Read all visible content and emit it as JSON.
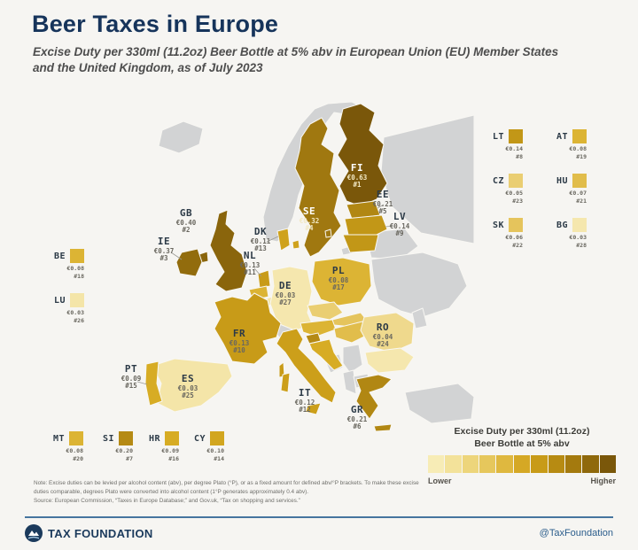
{
  "header": {
    "title": "Beer Taxes in Europe",
    "subtitle": "Excise Duty per 330ml (11.2oz) Beer Bottle at 5% abv in European Union (EU) Member States and the United Kingdom, as of July 2023"
  },
  "chart_data": {
    "type": "heatmap",
    "title": "Beer Taxes in Europe",
    "unit": "EUR per 330ml beer bottle at 5% abv",
    "categories": [
      "FI",
      "GB",
      "IE",
      "SE",
      "EE",
      "GR",
      "SI",
      "LT",
      "LV",
      "FR",
      "NL",
      "IT",
      "DK",
      "CY",
      "PT",
      "HR",
      "PL",
      "BE",
      "AT",
      "MT",
      "HU",
      "SK",
      "CZ",
      "RO",
      "ES",
      "LU",
      "DE",
      "BG"
    ],
    "values": [
      0.63,
      0.4,
      0.37,
      0.32,
      0.21,
      0.21,
      0.2,
      0.14,
      0.14,
      0.13,
      0.13,
      0.12,
      0.11,
      0.1,
      0.09,
      0.09,
      0.08,
      0.08,
      0.08,
      0.08,
      0.07,
      0.06,
      0.05,
      0.04,
      0.03,
      0.03,
      0.03,
      0.03
    ]
  },
  "countries": [
    {
      "code": "FI",
      "value": "€0.63",
      "rank": "#1",
      "color": "#7a570a"
    },
    {
      "code": "GB",
      "value": "€0.40",
      "rank": "#2",
      "color": "#8a650c"
    },
    {
      "code": "IE",
      "value": "€0.37",
      "rank": "#3",
      "color": "#926c0d"
    },
    {
      "code": "SE",
      "value": "€0.32",
      "rank": "#4",
      "color": "#a07810"
    },
    {
      "code": "EE",
      "value": "€0.21",
      "rank": "#5",
      "color": "#b18713"
    },
    {
      "code": "GR",
      "value": "€0.21",
      "rank": "#6",
      "color": "#b18713"
    },
    {
      "code": "SI",
      "value": "€0.20",
      "rank": "#7",
      "color": "#b58a14"
    },
    {
      "code": "LT",
      "value": "€0.14",
      "rank": "#8",
      "color": "#c29717"
    },
    {
      "code": "LV",
      "value": "€0.14",
      "rank": "#9",
      "color": "#c29717"
    },
    {
      "code": "FR",
      "value": "€0.13",
      "rank": "#10",
      "color": "#c89b18"
    },
    {
      "code": "NL",
      "value": "€0.13",
      "rank": "#11",
      "color": "#c89b18"
    },
    {
      "code": "IT",
      "value": "€0.12",
      "rank": "#12",
      "color": "#cc9f1a"
    },
    {
      "code": "DK",
      "value": "€0.11",
      "rank": "#13",
      "color": "#cfa21c"
    },
    {
      "code": "CY",
      "value": "€0.10",
      "rank": "#14",
      "color": "#d2a61f"
    },
    {
      "code": "PT",
      "value": "€0.09",
      "rank": "#15",
      "color": "#d7ac24"
    },
    {
      "code": "HR",
      "value": "€0.09",
      "rank": "#16",
      "color": "#d7ac24"
    },
    {
      "code": "PL",
      "value": "€0.08",
      "rank": "#17",
      "color": "#dcb434"
    },
    {
      "code": "BE",
      "value": "€0.08",
      "rank": "#18",
      "color": "#dcb434"
    },
    {
      "code": "AT",
      "value": "€0.08",
      "rank": "#19",
      "color": "#dcb434"
    },
    {
      "code": "MT",
      "value": "€0.08",
      "rank": "#20",
      "color": "#dcb434"
    },
    {
      "code": "HU",
      "value": "€0.07",
      "rank": "#21",
      "color": "#e1bd4b"
    },
    {
      "code": "SK",
      "value": "€0.06",
      "rank": "#22",
      "color": "#e5c45c"
    },
    {
      "code": "CZ",
      "value": "€0.05",
      "rank": "#23",
      "color": "#eace72"
    },
    {
      "code": "RO",
      "value": "€0.04",
      "rank": "#24",
      "color": "#efd98d"
    },
    {
      "code": "ES",
      "value": "€0.03",
      "rank": "#25",
      "color": "#f4e5a8"
    },
    {
      "code": "LU",
      "value": "€0.03",
      "rank": "#26",
      "color": "#f4e5a8"
    },
    {
      "code": "DE",
      "value": "€0.03",
      "rank": "#27",
      "color": "#f5e7ae"
    },
    {
      "code": "BG",
      "value": "€0.03",
      "rank": "#28",
      "color": "#f5e7ae"
    }
  ],
  "legend": {
    "title_line1": "Excise Duty per 330ml (11.2oz)",
    "title_line2": "Beer Bottle at 5% abv",
    "lower": "Lower",
    "higher": "Higher",
    "scale": [
      "#f7ecb6",
      "#f3e29a",
      "#edd57b",
      "#e6c75c",
      "#dfb83f",
      "#d5a825",
      "#c89b18",
      "#b78b12",
      "#a47a0e",
      "#8f690c",
      "#7a570a"
    ]
  },
  "colors": {
    "non_eu": "#d2d3d4",
    "background": "#f6f5f2",
    "accent_navy": "#16345b",
    "footer_line": "#46759f"
  },
  "note": "Note: Excise duties can be levied per alcohol content (abv), per degree Plato (°P), or as a fixed amount for defined abv/°P brackets. To make these excise duties comparable, degrees Plato were converted into alcohol content (1°P generates approximately 0.4 abv).",
  "source": "Source: European Commission, “Taxes in Europe Database;” and Gov.uk, “Tax on shopping and services.”",
  "footer": {
    "brand": "TAX FOUNDATION",
    "handle": "@TaxFoundation"
  }
}
